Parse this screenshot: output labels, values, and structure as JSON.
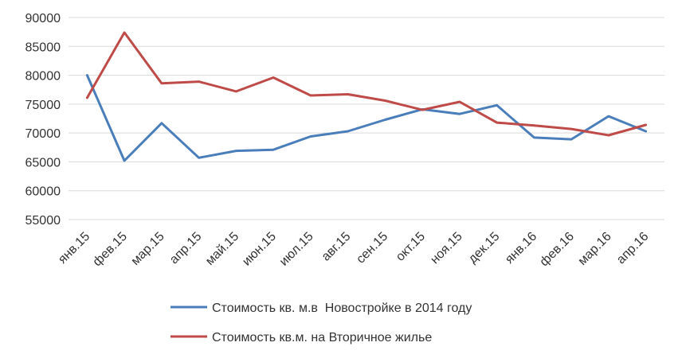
{
  "chart_data": {
    "type": "line",
    "categories": [
      "янв.15",
      "фев.15",
      "мар.15",
      "апр.15",
      "май.15",
      "июн.15",
      "июл.15",
      "авг.15",
      "сен.15",
      "окт.15",
      "ноя.15",
      "дек.15",
      "янв.16",
      "фев.16",
      "мар.16",
      "апр.16"
    ],
    "ylim": [
      55000,
      90000
    ],
    "yticks": [
      55000,
      60000,
      65000,
      70000,
      75000,
      80000,
      85000,
      90000
    ],
    "grid": true,
    "legend_position": "bottom",
    "series": [
      {
        "name": "Стоимость кв. м.в  Новостройке в 2014 году",
        "color": "#4a7ebb",
        "values": [
          80000,
          65200,
          71700,
          65700,
          66900,
          67100,
          69400,
          70300,
          72300,
          74100,
          73300,
          74800,
          69200,
          68900,
          72900,
          70300
        ]
      },
      {
        "name": "Стоимость кв.м. на Вторичное жилье",
        "color": "#be4b48",
        "values": [
          76100,
          87400,
          78600,
          78900,
          77200,
          79600,
          76500,
          76700,
          75600,
          74000,
          75400,
          71800,
          71300,
          70700,
          69600,
          71400
        ]
      }
    ]
  }
}
